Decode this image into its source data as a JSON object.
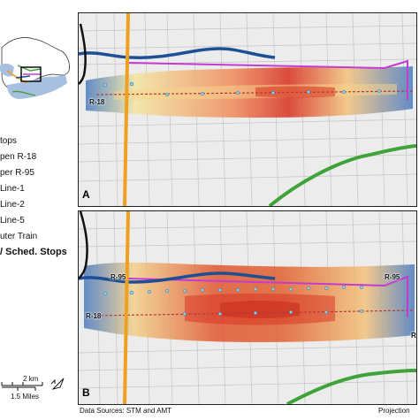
{
  "legend": {
    "items": [
      {
        "label": "tops",
        "icon": "stop-icon"
      },
      {
        "label": "pen R-18",
        "icon": "route-r18-icon"
      },
      {
        "label": "per R-95",
        "icon": "route-r95-icon"
      },
      {
        "label": "Line-1",
        "icon": "metro-line1-icon"
      },
      {
        "label": "Line-2",
        "icon": "metro-line2-icon"
      },
      {
        "label": "Line-5",
        "icon": "metro-line5-icon"
      },
      {
        "label": "uter Train",
        "icon": "commuter-train-icon"
      }
    ],
    "title": "/ Sched. Stops"
  },
  "scale": {
    "km": "2 km",
    "miles": "1.5 Miles"
  },
  "panels": {
    "a": {
      "letter": "A",
      "route_left": "R-18"
    },
    "b": {
      "letter": "B",
      "route_left_top": "R-95",
      "route_left_bottom": "R-18",
      "route_right": "R-95",
      "route_right_bottom": "R"
    }
  },
  "footer": {
    "source": "Data Sources: STM and AMT",
    "projection": "Projection"
  },
  "colors": {
    "r18": "#b5383a",
    "r95": "#c33bd1",
    "line1": "#3fa33a",
    "line2": "#f0a020",
    "line5": "#1d4f95",
    "train": "#111111",
    "water": "#a7c0df",
    "street": "#bdbdbd",
    "heat_low": "#4a7bc0",
    "heat_mid": "#f3e6a0",
    "heat_high": "#d7301f"
  }
}
